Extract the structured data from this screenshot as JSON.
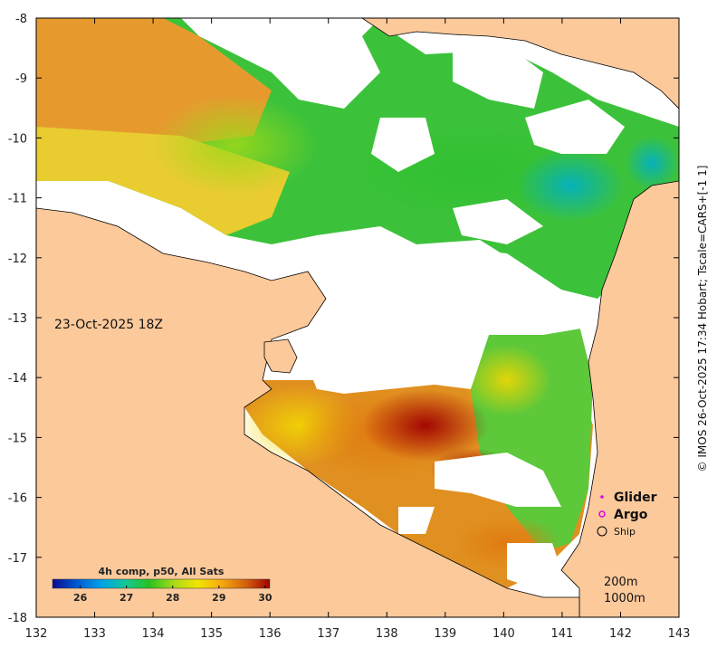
{
  "map": {
    "date_label": "23-Oct-2025 18Z",
    "copyright": "© IMOS 26-Oct-2025 17:34 Hobart; Tscale=CARS+[-1 1]",
    "colors": {
      "land": "#fcc99b",
      "cloud": "#ffffff",
      "frame": "#000000"
    }
  },
  "axes": {
    "x_ticks": [
      "132",
      "133",
      "134",
      "135",
      "136",
      "137",
      "138",
      "139",
      "140",
      "141",
      "142",
      "143"
    ],
    "y_ticks": [
      "-8",
      "-9",
      "-10",
      "-11",
      "-12",
      "-13",
      "-14",
      "-15",
      "-16",
      "-17",
      "-18"
    ],
    "x_range": [
      132,
      143
    ],
    "y_range": [
      -18,
      -8
    ]
  },
  "colorbar": {
    "title": "4h comp, p50, All Sats",
    "ticks": [
      "26",
      "27",
      "28",
      "29",
      "30"
    ],
    "range": [
      25.4,
      30.1
    ],
    "stops": [
      "#0b0b8e",
      "#0059d1",
      "#00a0e8",
      "#13c79b",
      "#28c21e",
      "#a6d81a",
      "#f2e602",
      "#f8a80e",
      "#d2620e",
      "#a00000"
    ]
  },
  "legend": {
    "items": [
      {
        "label": "Glider",
        "symbol": "dot",
        "color": "#e000e0"
      },
      {
        "label": "Argo",
        "symbol": "ring",
        "color": "#e000e0"
      },
      {
        "label": "Ship",
        "symbol": "circle",
        "color": "#000000"
      }
    ]
  },
  "depth_labels": [
    "200m",
    "1000m"
  ]
}
